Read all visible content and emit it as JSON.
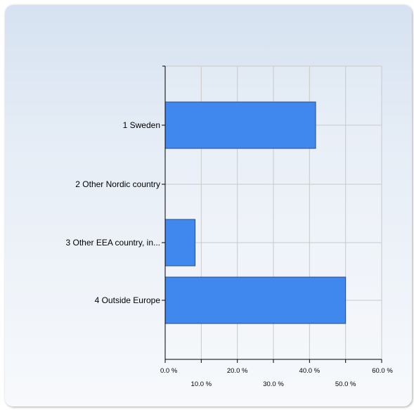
{
  "chart_data": {
    "type": "bar",
    "orientation": "horizontal",
    "categories": [
      "1 Sweden",
      "2 Other Nordic country",
      "3 Other EEA country, in...",
      "4 Outside Europe"
    ],
    "values": [
      41.7,
      0,
      8.3,
      50.0
    ],
    "x_ticks": [
      "0.0 %",
      "10.0 %",
      "20.0 %",
      "30.0 %",
      "40.0 %",
      "50.0 %",
      "60.0 %"
    ],
    "xlim": [
      0,
      60
    ],
    "grid": true,
    "title": "",
    "xlabel": "",
    "ylabel": "",
    "colors": {
      "bar": "#4088ee",
      "bar_border": "#2a4d86",
      "grid": "#c9c9c9",
      "axis": "#000000"
    }
  }
}
